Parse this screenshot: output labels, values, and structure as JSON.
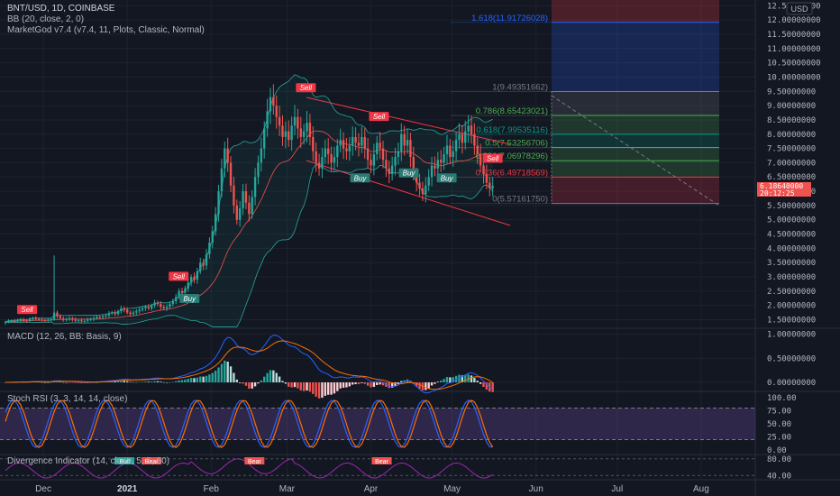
{
  "header": {
    "symbol_line": "BNT/USD, 1D, COINBASE",
    "bb_line": "BB (20, close, 2, 0)",
    "marketgod_line": "MarketGod v7.4 (v7.4, 11, Plots, Classic, Normal)",
    "currency": "USD"
  },
  "colors": {
    "background": "#131722",
    "up": "#26a69a",
    "down": "#ef5350",
    "grid": "#1e222d",
    "text": "#b2b5be",
    "macd": "#2962ff",
    "signal": "#ff6d00",
    "stoch_k": "#2962ff",
    "stoch_d": "#ff6d00",
    "stoch_band": "#7e57c2",
    "divergence": "#9c27b0"
  },
  "chart_data": {
    "type": "candlestick",
    "y_scale": "linear",
    "ylim": [
      1.2,
      12.7
    ],
    "y_ticks": [
      "12.50000000",
      "12.00000000",
      "11.50000000",
      "11.00000000",
      "10.50000000",
      "10.00000000",
      "9.50000000",
      "9.00000000",
      "8.50000000",
      "8.00000000",
      "7.50000000",
      "7.00000000",
      "6.50000000",
      "6.00000000",
      "5.50000000",
      "5.00000000",
      "4.50000000",
      "4.00000000",
      "3.50000000",
      "3.00000000",
      "2.50000000",
      "2.00000000",
      "1.50000000"
    ],
    "y_tick_values": [
      12.5,
      12,
      11.5,
      11,
      10.5,
      10,
      9.5,
      9,
      8.5,
      8,
      7.5,
      7,
      6.5,
      6,
      5.5,
      5,
      4.5,
      4,
      3.5,
      3,
      2.5,
      2,
      1.5
    ],
    "x_labels": [
      "Dec",
      "2021",
      "Feb",
      "Mar",
      "Apr",
      "May",
      "Jun",
      "Jul",
      "Aug"
    ],
    "x_label_days": [
      0,
      31,
      62,
      90,
      121,
      151,
      182,
      212,
      243
    ],
    "x_day_range": [
      -16,
      263
    ],
    "last_price_label": "6.18640000",
    "countdown_label": "20:12:25",
    "closes": [
      1.42,
      1.45,
      1.46,
      1.44,
      1.48,
      1.5,
      1.47,
      1.46,
      1.52,
      1.55,
      1.53,
      1.5,
      1.48,
      1.46,
      1.5,
      1.52,
      1.75,
      1.62,
      1.55,
      1.5,
      1.52,
      1.55,
      1.5,
      1.46,
      1.48,
      1.44,
      1.46,
      1.5,
      1.52,
      1.55,
      1.6,
      1.58,
      1.62,
      1.65,
      1.72,
      1.75,
      1.7,
      1.8,
      1.9,
      1.85,
      1.75,
      1.7,
      1.75,
      1.8,
      1.85,
      1.9,
      1.95,
      1.9,
      2.0,
      2.1,
      2.05,
      1.95,
      1.9,
      1.95,
      2.05,
      2.15,
      2.3,
      2.5,
      2.45,
      2.6,
      2.8,
      3.0,
      2.9,
      3.2,
      3.5,
      3.4,
      3.8,
      4.2,
      4.6,
      5.2,
      6.0,
      6.8,
      7.5,
      7.0,
      6.2,
      5.5,
      5.0,
      5.4,
      6.0,
      5.6,
      5.2,
      5.8,
      6.5,
      7.0,
      7.5,
      8.2,
      8.8,
      9.3,
      9.0,
      8.6,
      8.3,
      7.9,
      8.1,
      7.8,
      8.3,
      8.6,
      8.2,
      7.9,
      8.1,
      8.4,
      7.9,
      7.4,
      7.0,
      6.8,
      7.2,
      7.5,
      7.3,
      7.0,
      7.2,
      7.6,
      7.8,
      7.5,
      7.4,
      7.6,
      7.9,
      7.7,
      7.6,
      7.9,
      7.5,
      7.1,
      6.9,
      7.3,
      7.7,
      7.5,
      7.1,
      6.8,
      6.6,
      6.9,
      7.2,
      7.4,
      8.0,
      7.6,
      7.8,
      7.2,
      6.6,
      6.3,
      6.1,
      5.9,
      6.2,
      6.5,
      6.9,
      6.8,
      7.1,
      7.0,
      7.3,
      7.6,
      7.2,
      7.4,
      7.8,
      8.0,
      7.7,
      8.1,
      8.3,
      8.0,
      7.6,
      7.3,
      6.9,
      6.6,
      6.3,
      6.1,
      6.19
    ],
    "fib_levels": [
      {
        "label": "1.618(11.91726028)",
        "value": 11.91726028
      },
      {
        "label": "1(9.49351662)",
        "value": 9.49351662
      },
      {
        "label": "0.786(8.65423021)",
        "value": 8.65423021
      },
      {
        "label": "0.618(7.99535116)",
        "value": 7.99535116
      },
      {
        "label": "0.5(7.53256706)",
        "value": 7.53256706
      },
      {
        "label": "0.382(7.06978296)",
        "value": 7.06978296
      },
      {
        "label": "0.236(6.49718569)",
        "value": 6.49718569
      },
      {
        "label": "0(5.57161750)",
        "value": 5.5716175
      }
    ],
    "signals": [
      {
        "type": "Sell",
        "day": -6
      },
      {
        "type": "Sell",
        "day": 50
      },
      {
        "type": "Buy",
        "day": 54
      },
      {
        "type": "Sell",
        "day": 97
      },
      {
        "type": "Buy",
        "day": 117
      },
      {
        "type": "Sell",
        "day": 124
      },
      {
        "type": "Buy",
        "day": 135
      },
      {
        "type": "Buy",
        "day": 149
      },
      {
        "type": "Sell",
        "day": 166
      }
    ],
    "macd": {
      "title": "MACD (12, 26, BB: Basis, 9)",
      "ylim": [
        -0.15,
        1.05
      ],
      "y_ticks": [
        "1.00000000",
        "0.50000000",
        "0.00000000"
      ],
      "y_tick_values": [
        1,
        0.5,
        0
      ]
    },
    "stoch_rsi": {
      "title": "Stoch RSI (3, 3, 14, 14, close)",
      "ylim": [
        -5,
        105
      ],
      "y_ticks": [
        "100.00",
        "75.00",
        "50.00",
        "25.00",
        "0.00"
      ],
      "y_tick_values": [
        100,
        75,
        50,
        25,
        0
      ],
      "bands": [
        80,
        20
      ]
    },
    "divergence": {
      "title": "Divergence Indicator (14, close, 5, 5, 60)",
      "ylim": [
        32,
        86
      ],
      "y_ticks": [
        "80.00",
        "40.00"
      ],
      "y_tick_values": [
        80,
        40
      ],
      "markers": [
        "Bear",
        "Bear",
        "Bear",
        "Bull"
      ]
    }
  }
}
